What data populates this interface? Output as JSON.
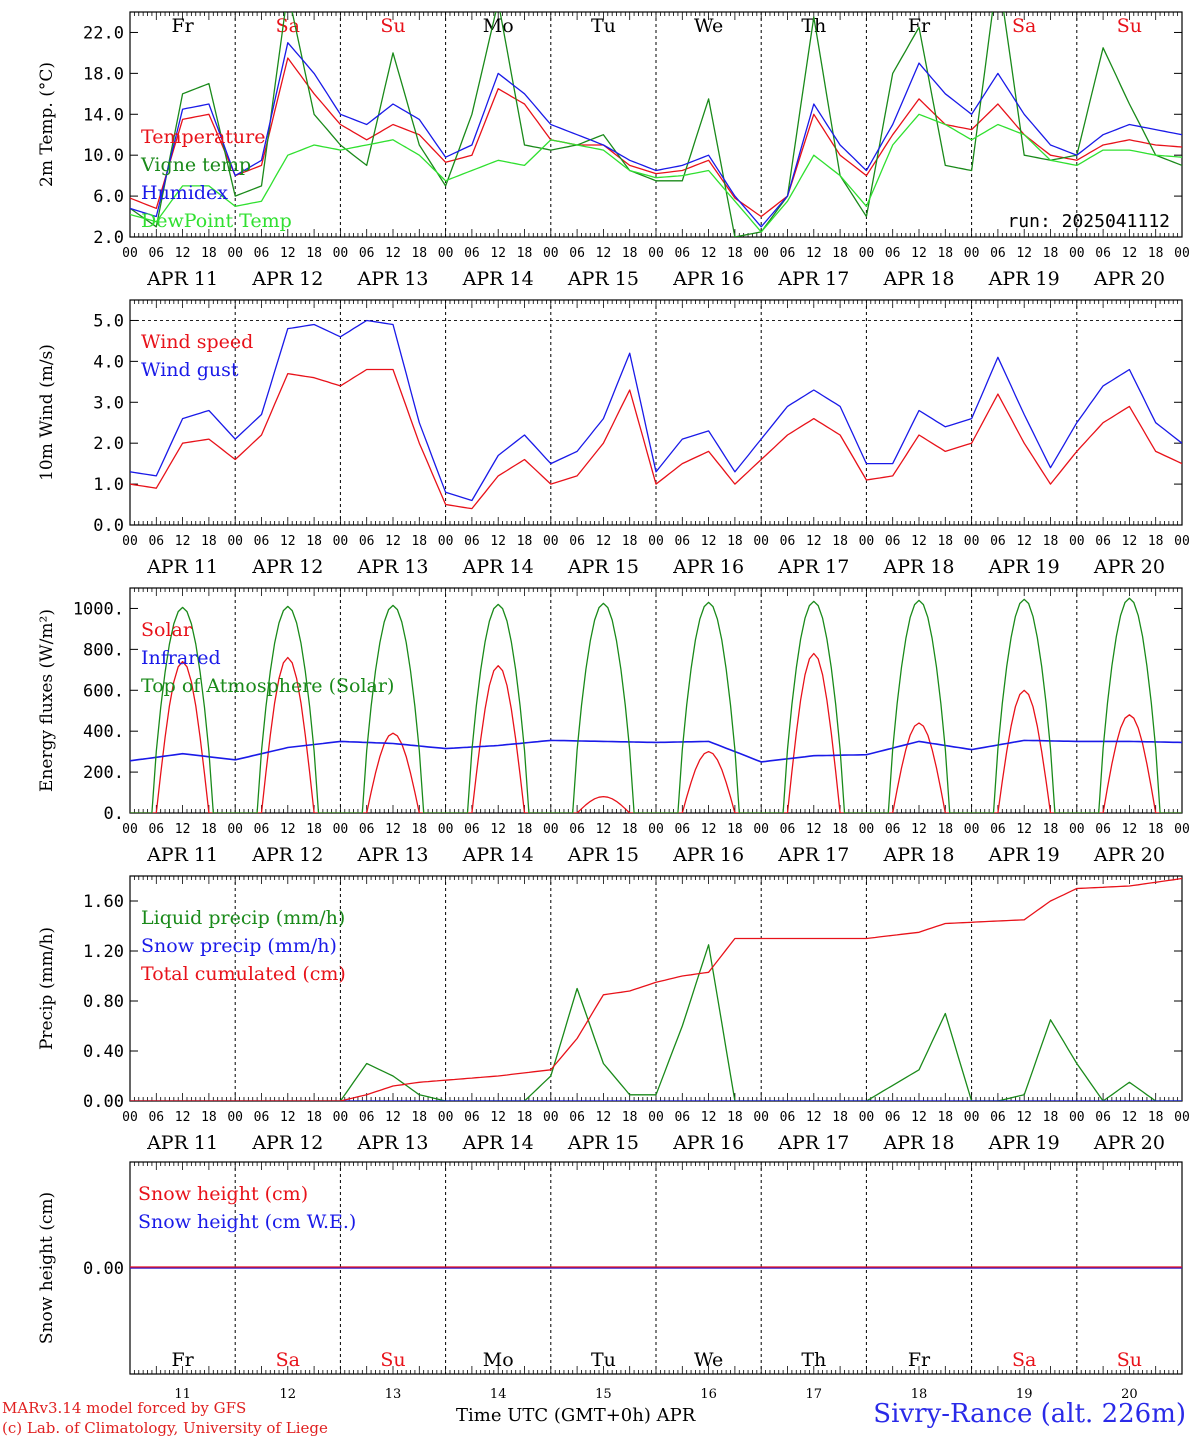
{
  "page": {
    "run_label": "run: 2025041112",
    "credit_line1": "MARv3.14 model forced by GFS",
    "credit_line2": "(c) Lab. of Climatology, University of Liege",
    "time_axis_title": "Time UTC (GMT+0h) APR",
    "station": "Sivry-Rance (alt. 226m)"
  },
  "days": {
    "weekday": [
      "Fr",
      "Sa",
      "Su",
      "Mo",
      "Tu",
      "We",
      "Th",
      "Fr",
      "Sa",
      "Su"
    ],
    "weekend": [
      false,
      true,
      true,
      false,
      false,
      false,
      false,
      false,
      true,
      true
    ],
    "date_labels": [
      "APR 11",
      "APR 12",
      "APR 13",
      "APR 14",
      "APR 15",
      "APR 16",
      "APR 17",
      "APR 18",
      "APR 19",
      "APR 20"
    ],
    "day_numbers": [
      "11",
      "12",
      "13",
      "14",
      "15",
      "16",
      "17",
      "18",
      "19",
      "20"
    ],
    "hour_labels": [
      "00",
      "06",
      "12",
      "18"
    ],
    "final_hour_label": "00"
  },
  "colors": {
    "red": "#e8121a",
    "dark_green": "#1a8a1a",
    "blue": "#1a1ae8",
    "light_green": "#30e030",
    "black": "#000000"
  },
  "chart_data": [
    {
      "type": "line",
      "ylabel": "2m Temp. (°C)",
      "ylim": [
        2,
        24
      ],
      "yticks": [
        2,
        6,
        10,
        14,
        18,
        22
      ],
      "ytick_labels": [
        "2.0",
        "6.0",
        "10.0",
        "14.0",
        "18.0",
        "22.0"
      ],
      "x_hours": [
        0,
        6,
        12,
        18,
        24,
        30,
        36,
        42,
        48,
        54,
        60,
        66,
        72,
        78,
        84,
        90,
        96,
        102,
        108,
        114,
        120,
        126,
        132,
        138,
        144,
        150,
        156,
        162,
        168,
        174,
        180,
        186,
        192,
        198,
        204,
        210,
        216,
        222,
        228,
        234,
        240
      ],
      "series": [
        {
          "name": "Temperature",
          "color": "red",
          "values": [
            5.8,
            4.8,
            13.5,
            14.0,
            8.0,
            9.0,
            19.5,
            16.0,
            13.0,
            11.5,
            13.0,
            12.0,
            9.3,
            10.0,
            16.5,
            15.0,
            11.5,
            11.0,
            11.0,
            9.0,
            8.2,
            8.5,
            9.5,
            5.8,
            4.0,
            6.0,
            14.0,
            10.0,
            8.0,
            12.0,
            15.5,
            13.0,
            12.5,
            15.0,
            12.0,
            10.0,
            9.5,
            11.0,
            11.5,
            11.0,
            10.8
          ]
        },
        {
          "name": "Vigne temp",
          "color": "dark_green",
          "values": [
            4.8,
            3.0,
            16.0,
            17.0,
            6.0,
            7.0,
            26.0,
            14.0,
            11.0,
            9.0,
            20.0,
            11.0,
            7.0,
            14.0,
            25.0,
            11.0,
            10.5,
            11.0,
            12.0,
            8.5,
            7.5,
            7.5,
            15.5,
            2.0,
            2.5,
            6.0,
            23.5,
            8.0,
            4.0,
            18.0,
            22.5,
            9.0,
            8.5,
            28.0,
            10.0,
            9.5,
            10.0,
            20.5,
            15.0,
            10.0,
            9.0
          ]
        },
        {
          "name": "Humidex",
          "color": "blue",
          "values": [
            4.8,
            4.0,
            14.5,
            15.0,
            8.0,
            9.5,
            21.0,
            18.0,
            14.0,
            13.0,
            15.0,
            13.5,
            9.8,
            11.0,
            18.0,
            16.0,
            13.0,
            12.0,
            11.0,
            9.5,
            8.5,
            9.0,
            10.0,
            6.0,
            3.0,
            6.0,
            15.0,
            11.0,
            8.5,
            13.0,
            19.0,
            16.0,
            14.0,
            18.0,
            14.0,
            11.0,
            10.0,
            12.0,
            13.0,
            12.5,
            12.0
          ]
        },
        {
          "name": "DewPoint Temp",
          "color": "light_green",
          "values": [
            4.2,
            3.5,
            7.0,
            7.0,
            5.0,
            5.5,
            10.0,
            11.0,
            10.5,
            11.0,
            11.5,
            10.0,
            7.5,
            8.5,
            9.5,
            9.0,
            11.5,
            11.0,
            10.5,
            8.5,
            7.8,
            8.0,
            8.5,
            5.5,
            2.5,
            5.5,
            10.0,
            8.0,
            5.0,
            11.0,
            14.0,
            13.0,
            11.5,
            13.0,
            12.0,
            9.5,
            9.0,
            10.5,
            10.5,
            10.0,
            9.8
          ]
        }
      ]
    },
    {
      "type": "line",
      "ylabel": "10m Wind (m/s)",
      "ylim": [
        0,
        5.5
      ],
      "yticks": [
        0,
        1,
        2,
        3,
        4,
        5
      ],
      "ytick_labels": [
        "0.0",
        "1.0",
        "2.0",
        "3.0",
        "4.0",
        "5.0"
      ],
      "dashed_line_at": 5,
      "x_hours": [
        0,
        6,
        12,
        18,
        24,
        30,
        36,
        42,
        48,
        54,
        60,
        66,
        72,
        78,
        84,
        90,
        96,
        102,
        108,
        114,
        120,
        126,
        132,
        138,
        144,
        150,
        156,
        162,
        168,
        174,
        180,
        186,
        192,
        198,
        204,
        210,
        216,
        222,
        228,
        234,
        240
      ],
      "series": [
        {
          "name": "Wind speed",
          "color": "red",
          "values": [
            1.0,
            0.9,
            2.0,
            2.1,
            1.6,
            2.2,
            3.7,
            3.6,
            3.4,
            3.8,
            3.8,
            2.0,
            0.5,
            0.4,
            1.2,
            1.6,
            1.0,
            1.2,
            2.0,
            3.3,
            1.0,
            1.5,
            1.8,
            1.0,
            1.6,
            2.2,
            2.6,
            2.2,
            1.1,
            1.2,
            2.2,
            1.8,
            2.0,
            3.2,
            2.0,
            1.0,
            1.8,
            2.5,
            2.9,
            1.8,
            1.5
          ]
        },
        {
          "name": "Wind gust",
          "color": "blue",
          "values": [
            1.3,
            1.2,
            2.6,
            2.8,
            2.1,
            2.7,
            4.8,
            4.9,
            4.6,
            5.0,
            4.9,
            2.5,
            0.8,
            0.6,
            1.7,
            2.2,
            1.5,
            1.8,
            2.6,
            4.2,
            1.3,
            2.1,
            2.3,
            1.3,
            2.1,
            2.9,
            3.3,
            2.9,
            1.5,
            1.5,
            2.8,
            2.4,
            2.6,
            4.1,
            2.7,
            1.4,
            2.5,
            3.4,
            3.8,
            2.5,
            2.0
          ]
        }
      ]
    },
    {
      "type": "line",
      "ylabel": "Energy fluxes (W/m²)",
      "ylim": [
        0,
        1100
      ],
      "yticks": [
        0,
        200,
        400,
        600,
        800,
        1000
      ],
      "ytick_labels": [
        "0.",
        "200.",
        "400.",
        "600.",
        "800.",
        "1000."
      ],
      "peak_hour_offset": 12,
      "series": [
        {
          "name": "Solar",
          "color": "red",
          "daily_peak": [
            740,
            760,
            390,
            720,
            80,
            300,
            780,
            440,
            600,
            480
          ]
        },
        {
          "name": "Infrared",
          "color": "blue",
          "x_hours": [
            0,
            12,
            24,
            36,
            48,
            60,
            72,
            84,
            96,
            108,
            120,
            132,
            144,
            156,
            168,
            180,
            192,
            204,
            216,
            228,
            240
          ],
          "values": [
            255,
            290,
            260,
            320,
            350,
            340,
            315,
            330,
            355,
            350,
            345,
            350,
            250,
            280,
            285,
            350,
            310,
            355,
            350,
            350,
            345
          ]
        },
        {
          "name": "Top of Atmosphere (Solar)",
          "color": "dark_green",
          "daily_peak": [
            1005,
            1010,
            1015,
            1020,
            1025,
            1030,
            1035,
            1040,
            1045,
            1050
          ]
        }
      ]
    },
    {
      "type": "line",
      "ylabel": "Precip (mm/h)",
      "ylim": [
        0,
        1.8
      ],
      "yticks": [
        0,
        0.4,
        0.8,
        1.2,
        1.6
      ],
      "ytick_labels": [
        "0.00",
        "0.40",
        "0.80",
        "1.20",
        "1.60"
      ],
      "series": [
        {
          "name": "Liquid precip (mm/h)",
          "color": "dark_green",
          "x_hours": [
            0,
            48,
            54,
            60,
            66,
            72,
            84,
            90,
            96,
            102,
            108,
            114,
            120,
            126,
            132,
            138,
            144,
            156,
            168,
            180,
            186,
            192,
            198,
            204,
            210,
            216,
            222,
            228,
            234,
            240
          ],
          "values": [
            0,
            0,
            0.3,
            0.2,
            0.05,
            0,
            0,
            0,
            0.2,
            0.9,
            0.3,
            0.05,
            0.05,
            0.6,
            1.25,
            0,
            0,
            0,
            0,
            0.25,
            0.7,
            0,
            0,
            0.05,
            0.65,
            0.3,
            0,
            0.15,
            0,
            0
          ]
        },
        {
          "name": "Snow precip (mm/h)",
          "color": "blue",
          "x_hours": [
            0,
            240
          ],
          "values": [
            0,
            0
          ]
        },
        {
          "name": "Total cumulated (cm)",
          "color": "red",
          "x_hours": [
            0,
            48,
            54,
            60,
            66,
            84,
            96,
            102,
            108,
            114,
            120,
            126,
            132,
            138,
            144,
            168,
            180,
            186,
            192,
            204,
            210,
            216,
            228,
            240
          ],
          "values": [
            0,
            0,
            0.05,
            0.12,
            0.15,
            0.2,
            0.25,
            0.5,
            0.85,
            0.88,
            0.95,
            1.0,
            1.03,
            1.3,
            1.3,
            1.3,
            1.35,
            1.42,
            1.43,
            1.45,
            1.6,
            1.7,
            1.72,
            1.78
          ]
        }
      ]
    },
    {
      "type": "line",
      "ylabel": "Snow height (cm)",
      "yticks": [
        0
      ],
      "ytick_labels": [
        "0.00"
      ],
      "series": [
        {
          "name": "Snow height (cm)",
          "color": "red",
          "x_hours": [
            0,
            240
          ],
          "values": [
            0,
            0
          ]
        },
        {
          "name": "Snow height (cm W.E.)",
          "color": "blue",
          "x_hours": [
            0,
            240
          ],
          "values": [
            0,
            0
          ]
        }
      ]
    }
  ]
}
